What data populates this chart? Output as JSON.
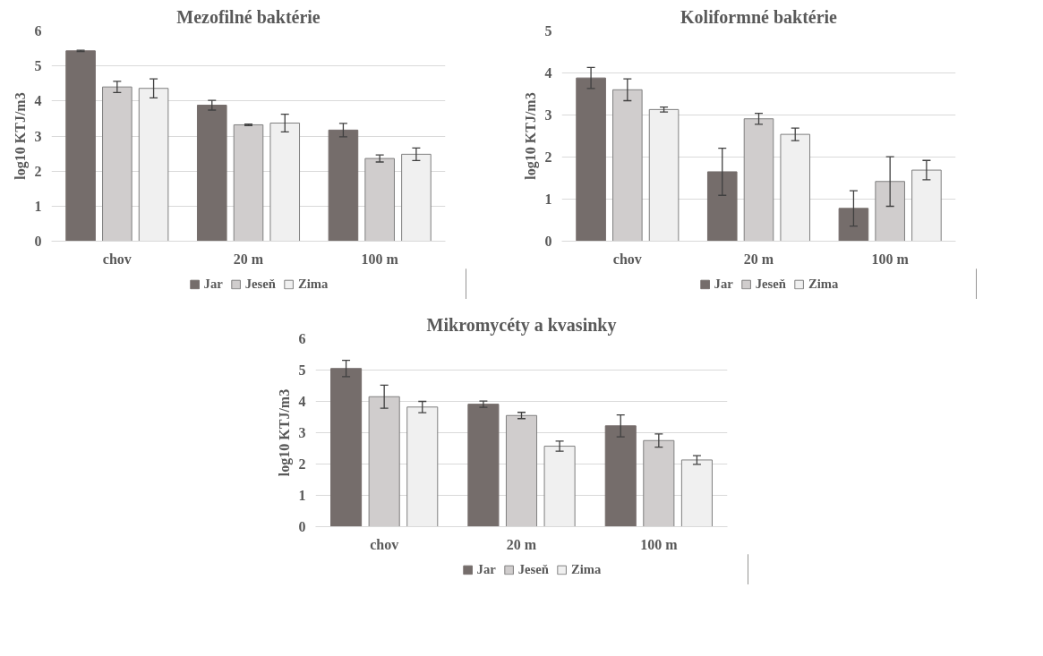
{
  "chart_data": [
    {
      "type": "bar",
      "title": "Mezofilné baktérie",
      "ylabel": "log10 KTJ/m3",
      "categories": [
        "chov",
        "20 m",
        "100 m"
      ],
      "ylim": [
        0,
        6
      ],
      "yticks": [
        0,
        1,
        2,
        3,
        4,
        5,
        6
      ],
      "grid": "y",
      "legend": "bottom",
      "series": [
        {
          "name": "Jar",
          "color": "#756d6b",
          "values": [
            5.43,
            3.88,
            3.17
          ],
          "errors": [
            0.02,
            0.14,
            0.19
          ]
        },
        {
          "name": "Jeseň",
          "color": "#d0cdcd",
          "values": [
            4.4,
            3.32,
            2.36
          ],
          "errors": [
            0.16,
            0.02,
            0.1
          ]
        },
        {
          "name": "Zima",
          "color": "#f0f0f0",
          "values": [
            4.36,
            3.37,
            2.48
          ],
          "errors": [
            0.27,
            0.25,
            0.18
          ]
        }
      ]
    },
    {
      "type": "bar",
      "title": "Koliformné baktérie",
      "ylabel": "log10 KTJ/m3",
      "categories": [
        "chov",
        "20 m",
        "100 m"
      ],
      "ylim": [
        0,
        5
      ],
      "yticks": [
        0,
        1,
        2,
        3,
        4,
        5
      ],
      "grid": "y",
      "legend": "bottom",
      "series": [
        {
          "name": "Jar",
          "color": "#756d6b",
          "values": [
            3.88,
            1.65,
            0.78
          ],
          "errors": [
            0.25,
            0.56,
            0.42
          ]
        },
        {
          "name": "Jeseň",
          "color": "#d0cdcd",
          "values": [
            3.6,
            2.91,
            1.42
          ],
          "errors": [
            0.26,
            0.13,
            0.59
          ]
        },
        {
          "name": "Zima",
          "color": "#f0f0f0",
          "values": [
            3.13,
            2.54,
            1.69
          ],
          "errors": [
            0.06,
            0.15,
            0.23
          ]
        }
      ]
    },
    {
      "type": "bar",
      "title": "Mikromycéty a kvasinky",
      "ylabel": "log10 KTJ/m3",
      "categories": [
        "chov",
        "20 m",
        "100 m"
      ],
      "ylim": [
        0,
        6
      ],
      "yticks": [
        0,
        1,
        2,
        3,
        4,
        5,
        6
      ],
      "grid": "y",
      "legend": "bottom",
      "series": [
        {
          "name": "Jar",
          "color": "#756d6b",
          "values": [
            5.05,
            3.91,
            3.22
          ],
          "errors": [
            0.26,
            0.1,
            0.35
          ]
        },
        {
          "name": "Jeseň",
          "color": "#d0cdcd",
          "values": [
            4.15,
            3.55,
            2.75
          ],
          "errors": [
            0.37,
            0.1,
            0.21
          ]
        },
        {
          "name": "Zima",
          "color": "#f0f0f0",
          "values": [
            3.82,
            2.57,
            2.13
          ],
          "errors": [
            0.18,
            0.16,
            0.14
          ]
        }
      ]
    }
  ]
}
